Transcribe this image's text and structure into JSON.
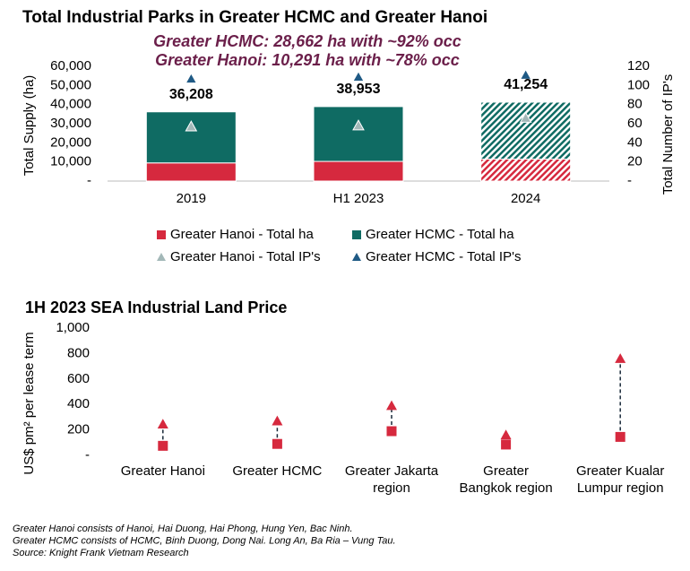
{
  "chart_data": [
    {
      "type": "bar",
      "stacked": true,
      "title": "Total Industrial Parks in Greater HCMC and Greater Hanoi",
      "annotations": [
        "Greater HCMC: 28,662 ha with ~92% occ",
        "Greater Hanoi: 10,291 ha with ~78% occ"
      ],
      "annotation_color": "#6b1f4a",
      "ylabel": "Total Supply (ha)",
      "y2label": "Total Number of IP's",
      "categories": [
        "2019",
        "H1 2023",
        "2024"
      ],
      "series": [
        {
          "name": "Greater Hanoi - Total ha",
          "color": "#d6293e",
          "values": [
            9500,
            10291,
            11500
          ]
        },
        {
          "name": "Greater HCMC - Total ha",
          "color": "#0f6b63",
          "values": [
            26708,
            28662,
            29754
          ]
        },
        {
          "name": "Greater Hanoi - Total IP's",
          "color": "#a3b8b8",
          "type": "scatter",
          "marker": "triangle",
          "axis": "y2",
          "values": [
            57,
            58,
            66
          ]
        },
        {
          "name": "Greater HCMC - Total IP's",
          "color": "#1f5a85",
          "type": "scatter",
          "marker": "triangle",
          "axis": "y2",
          "values": [
            107,
            109,
            111
          ]
        }
      ],
      "totals": [
        36208,
        38953,
        41254
      ],
      "total_labels": [
        "36,208",
        "38,953",
        "41,254"
      ],
      "hatched": [
        false,
        false,
        true
      ],
      "ylim": [
        0,
        60000
      ],
      "yticks": [
        {
          "value": 0,
          "label": "-"
        },
        {
          "value": 10000,
          "label": "10,000"
        },
        {
          "value": 20000,
          "label": "20,000"
        },
        {
          "value": 30000,
          "label": "30,000"
        },
        {
          "value": 40000,
          "label": "40,000"
        },
        {
          "value": 50000,
          "label": "50,000"
        },
        {
          "value": 60000,
          "label": "60,000"
        }
      ],
      "y2lim": [
        0,
        120
      ],
      "y2ticks": [
        {
          "value": 0,
          "label": "-"
        },
        20,
        40,
        60,
        80,
        100,
        120
      ],
      "legend": "bottom"
    },
    {
      "type": "range",
      "title": "1H 2023 SEA Industrial Land Price",
      "ylabel": "US$ pm² per lease term",
      "categories": [
        "Greater Hanoi",
        "Greater HCMC",
        "Greater Jakarta\nregion",
        "Greater\nBangkok region",
        "Greater Kualar\nLumpur region"
      ],
      "series": [
        {
          "color": "#d6293e",
          "marker": "square",
          "values": [
            75,
            90,
            190,
            85,
            145
          ]
        },
        {
          "color": "#d6293e",
          "marker": "triangle",
          "values": [
            245,
            270,
            390,
            160,
            760
          ]
        }
      ],
      "connector_color": "#1a2a3a",
      "ylim": [
        0,
        1000
      ],
      "yticks": [
        {
          "value": 0,
          "label": "-"
        },
        200,
        400,
        600,
        800,
        {
          "value": 1000,
          "label": "1,000"
        }
      ]
    }
  ],
  "footnotes": [
    "Greater Hanoi consists of Hanoi, Hai Duong, Hai Phong, Hung Yen, Bac Ninh.",
    "Greater HCMC consists of HCMC, Binh Duong, Dong Nai. Long An, Ba Ria – Vung Tau.",
    "Source: Knight Frank Vietnam Research"
  ]
}
